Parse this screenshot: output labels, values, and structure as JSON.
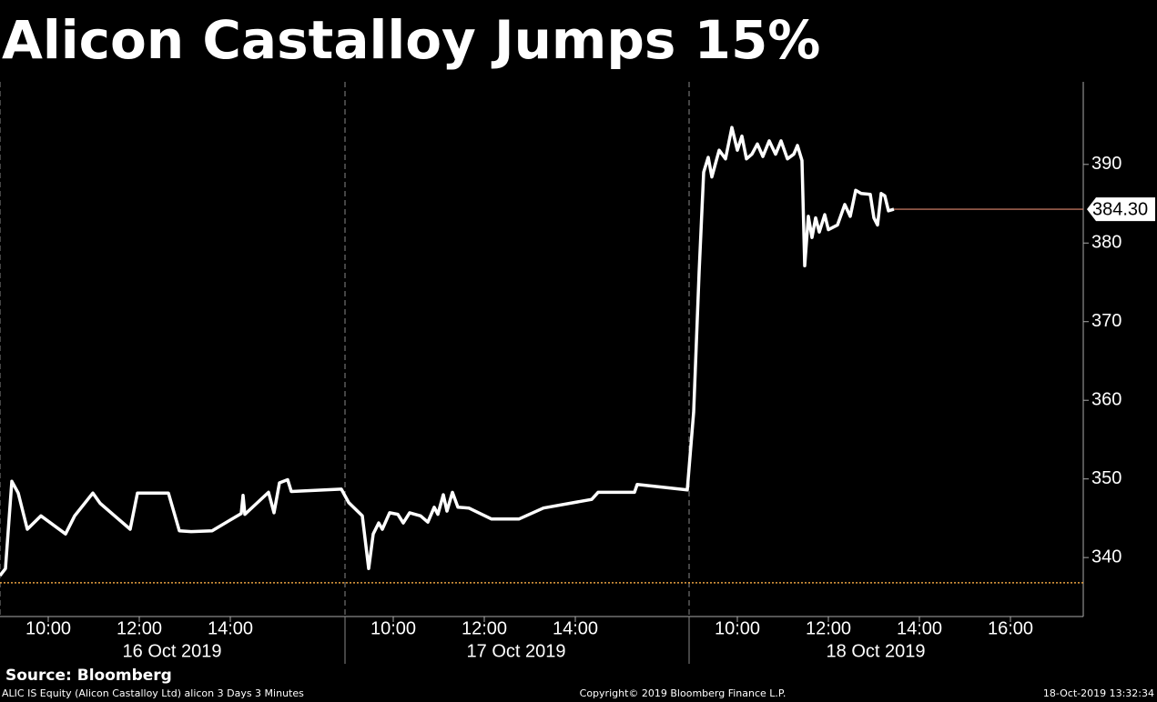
{
  "chart_data": {
    "type": "line",
    "title": "Alicon Castalloy Jumps 15%",
    "color": "#ffffff",
    "x": [
      -0.06,
      0.06,
      0.2,
      0.34,
      0.54,
      0.84,
      1.38,
      1.58,
      1.98,
      2.14,
      2.8,
      2.96,
      3.64,
      3.88,
      4.14,
      4.6,
      5.24,
      5.28,
      5.32,
      5.84,
      5.96,
      6.08,
      6.26,
      6.34,
      7.44,
      7.6,
      7.9,
      8.04,
      8.14,
      8.26,
      8.34,
      8.5,
      8.68,
      8.8,
      8.94,
      9.18,
      9.34,
      9.48,
      9.56,
      9.68,
      9.76,
      9.88,
      10.0,
      10.24,
      10.74,
      11.34,
      11.88,
      12.94,
      13.08,
      13.88,
      13.94,
      15.04,
      15.18,
      15.3,
      15.4,
      15.5,
      15.58,
      15.74,
      15.88,
      16.02,
      16.14,
      16.24,
      16.34,
      16.46,
      16.58,
      16.7,
      16.84,
      16.98,
      17.1,
      17.24,
      17.38,
      17.46,
      17.56,
      17.62,
      17.7,
      17.78,
      17.86,
      17.94,
      18.06,
      18.14,
      18.34,
      18.5,
      18.62,
      18.74,
      18.86,
      19.06,
      19.14,
      19.22,
      19.3,
      19.38,
      19.46,
      19.58
    ],
    "values": [
      337.7,
      338.6,
      349.7,
      348.2,
      343.6,
      345.3,
      343.0,
      345.3,
      348.2,
      346.9,
      343.6,
      348.2,
      348.2,
      343.4,
      343.3,
      343.4,
      345.6,
      347.9,
      345.5,
      348.3,
      345.7,
      349.5,
      349.9,
      348.4,
      348.7,
      347.0,
      345.3,
      338.6,
      343.0,
      344.4,
      343.6,
      345.7,
      345.5,
      344.4,
      345.7,
      345.3,
      344.5,
      346.4,
      345.5,
      348.0,
      345.9,
      348.3,
      346.4,
      346.3,
      344.9,
      344.9,
      346.3,
      347.4,
      348.3,
      348.3,
      349.3,
      348.6,
      358.5,
      376.3,
      389.0,
      390.9,
      388.4,
      391.8,
      390.7,
      394.7,
      391.8,
      393.6,
      390.7,
      391.3,
      392.6,
      391.0,
      393.0,
      391.3,
      393.0,
      390.7,
      391.3,
      392.4,
      390.5,
      377.1,
      383.4,
      380.7,
      383.2,
      381.4,
      383.6,
      381.7,
      382.3,
      384.9,
      383.4,
      386.7,
      386.3,
      386.2,
      383.2,
      382.3,
      386.3,
      386.0,
      384.1,
      384.3
    ],
    "xlim": [
      -0.06,
      23.74
    ],
    "ylim": [
      332.5,
      400.5
    ],
    "yticks": [
      340,
      350,
      360,
      370,
      380,
      390
    ],
    "xticks": [
      {
        "value": 1,
        "label": "10:00"
      },
      {
        "value": 3,
        "label": "12:00"
      },
      {
        "value": 5,
        "label": "14:00"
      },
      {
        "value": 8.58,
        "label": "10:00"
      },
      {
        "value": 10.58,
        "label": "12:00"
      },
      {
        "value": 12.58,
        "label": "14:00"
      },
      {
        "value": 16.14,
        "label": "10:00"
      },
      {
        "value": 18.14,
        "label": "12:00"
      },
      {
        "value": 20.14,
        "label": "14:00"
      },
      {
        "value": 22.14,
        "label": "16:00"
      }
    ],
    "day_labels": [
      {
        "value": 3.72,
        "label": "16 Oct 2019"
      },
      {
        "value": 11.28,
        "label": "17 Oct 2019"
      },
      {
        "value": 19.18,
        "label": "18 Oct 2019"
      }
    ],
    "day_breaks": [
      -0.06,
      7.52,
      15.08
    ],
    "prev_close": 336.8,
    "prev_close_color": "#e8a040",
    "last_price": {
      "value": 384.3,
      "label": "384.30"
    },
    "last_price_color": "#e08a70",
    "source": "Source: Bloomberg",
    "footer": {
      "left": "ALIC IS Equity (Alicon Castalloy Ltd) alicon 3 Days 3 Minutes",
      "center": "Copyright© 2019 Bloomberg Finance L.P.",
      "right": "18-Oct-2019 13:32:34"
    }
  }
}
